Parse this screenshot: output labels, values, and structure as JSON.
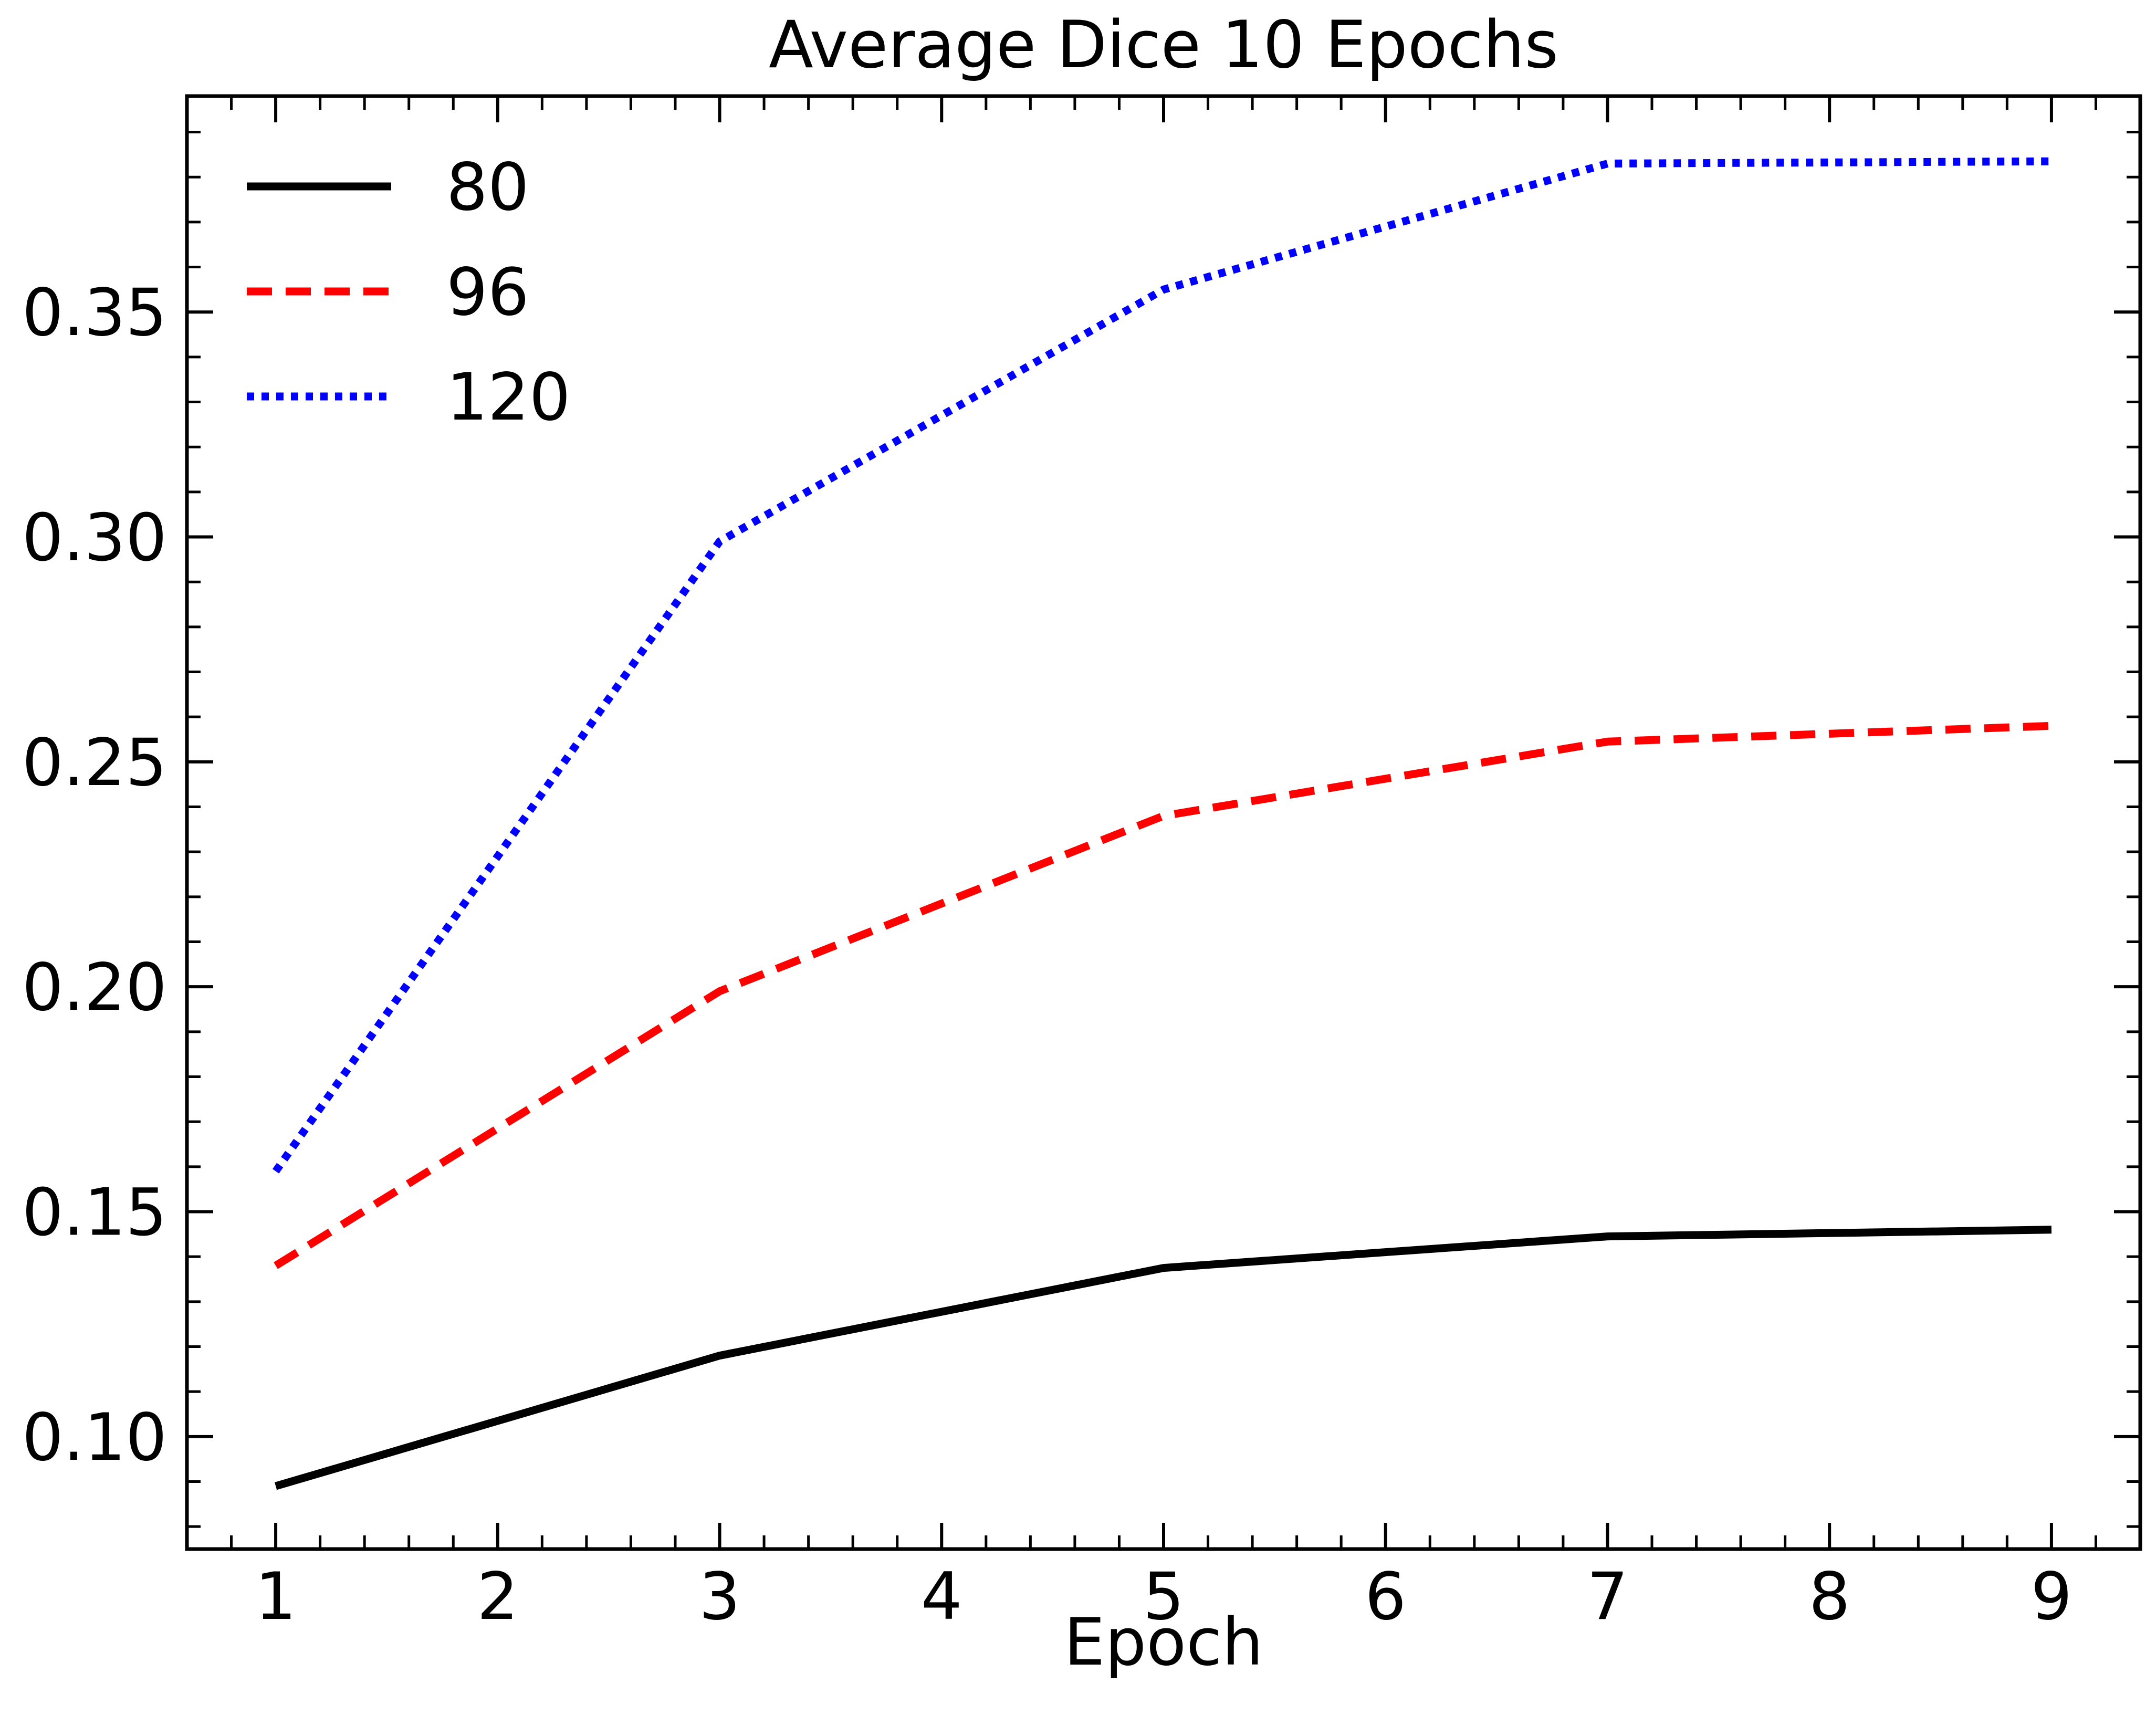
{
  "chart_data": {
    "type": "line",
    "title": "Average Dice 10 Epochs",
    "xlabel": "Epoch",
    "ylabel": "",
    "x": [
      1,
      3,
      5,
      7,
      9
    ],
    "xlim": [
      0.6,
      9.4
    ],
    "ylim": [
      0.075,
      0.398
    ],
    "xticks": [
      1,
      2,
      3,
      4,
      5,
      6,
      7,
      8,
      9
    ],
    "yticks": [
      0.1,
      0.15,
      0.2,
      0.25,
      0.3,
      0.35
    ],
    "ytick_labels": [
      "0.10",
      "0.15",
      "0.20",
      "0.25",
      "0.30",
      "0.35"
    ],
    "grid": false,
    "legend_position": "top-left",
    "series": [
      {
        "name": "80",
        "color": "#000000",
        "style": "solid",
        "values": [
          0.089,
          0.118,
          0.1375,
          0.1445,
          0.146
        ]
      },
      {
        "name": "96",
        "color": "#ff0000",
        "style": "dashed",
        "values": [
          0.138,
          0.199,
          0.238,
          0.2545,
          0.258
        ]
      },
      {
        "name": "120",
        "color": "#0000ff",
        "style": "dotted",
        "values": [
          0.159,
          0.299,
          0.355,
          0.383,
          0.3835
        ]
      }
    ]
  }
}
